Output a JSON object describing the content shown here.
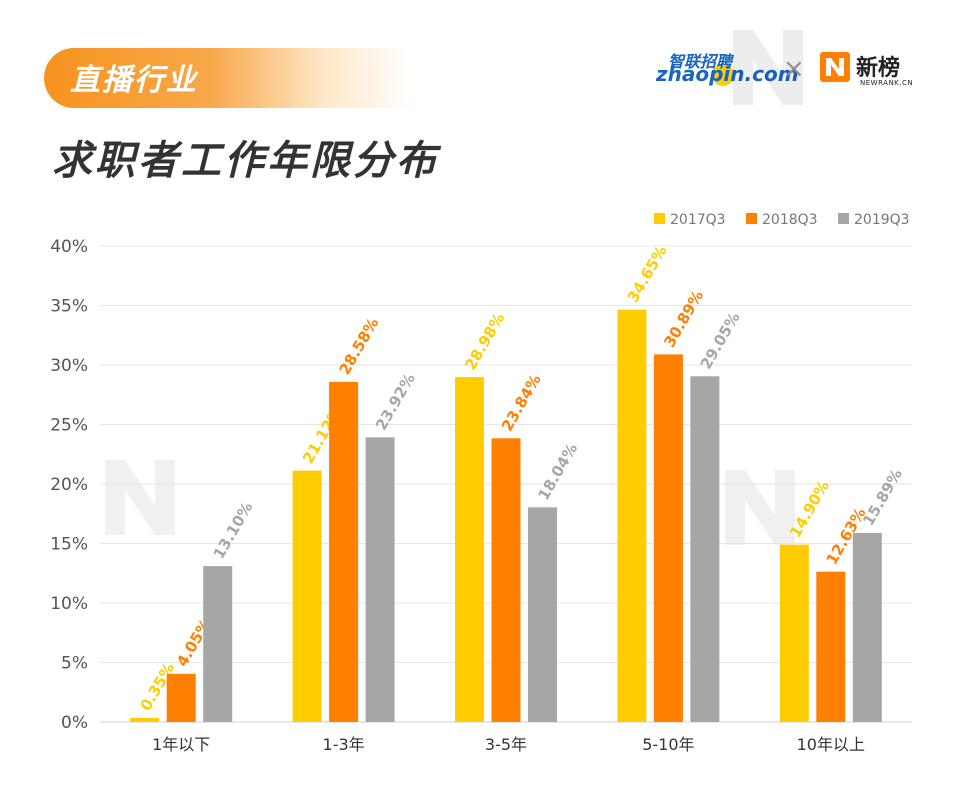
{
  "header": {
    "tag": "直播行业",
    "title": "求职者工作年限分布"
  },
  "logos": {
    "zhaopin_cn": "智联招聘",
    "zhaopin_en": "zhaopin.com",
    "separator": "×",
    "newrank_cn": "新榜",
    "newrank_en": "NEWRANK.CN"
  },
  "colors": {
    "accent": "#f7931e",
    "series_2017": "#ffcc00",
    "series_2018": "#ff7f00",
    "series_2019": "#a6a6a6",
    "grid": "#e6e6e6",
    "axis_text": "#555555"
  },
  "chart_data": {
    "type": "bar",
    "title": "求职者工作年限分布",
    "categories": [
      "1年以下",
      "1-3年",
      "3-5年",
      "5-10年",
      "10年以上"
    ],
    "series": [
      {
        "name": "2017Q3",
        "color": "#ffcc00",
        "values": [
          0.35,
          21.12,
          28.98,
          34.65,
          14.9
        ],
        "labels": [
          "0.35%",
          "21.12%",
          "28.98%",
          "34.65%",
          "14.90%"
        ]
      },
      {
        "name": "2018Q3",
        "color": "#ff7f00",
        "values": [
          4.05,
          28.58,
          23.84,
          30.89,
          12.63
        ],
        "labels": [
          "4.05%",
          "28.58%",
          "23.84%",
          "30.89%",
          "12.63%"
        ]
      },
      {
        "name": "2019Q3",
        "color": "#a6a6a6",
        "values": [
          13.1,
          23.92,
          18.04,
          29.05,
          15.89
        ],
        "labels": [
          "13.10%",
          "23.92%",
          "18.04%",
          "29.05%",
          "15.89%"
        ]
      }
    ],
    "ylim": [
      0,
      40
    ],
    "yticks": [
      "0%",
      "5%",
      "10%",
      "15%",
      "20%",
      "25%",
      "30%",
      "35%",
      "40%"
    ],
    "grid": true,
    "legend": "top-right",
    "xlabel": "",
    "ylabel": ""
  }
}
